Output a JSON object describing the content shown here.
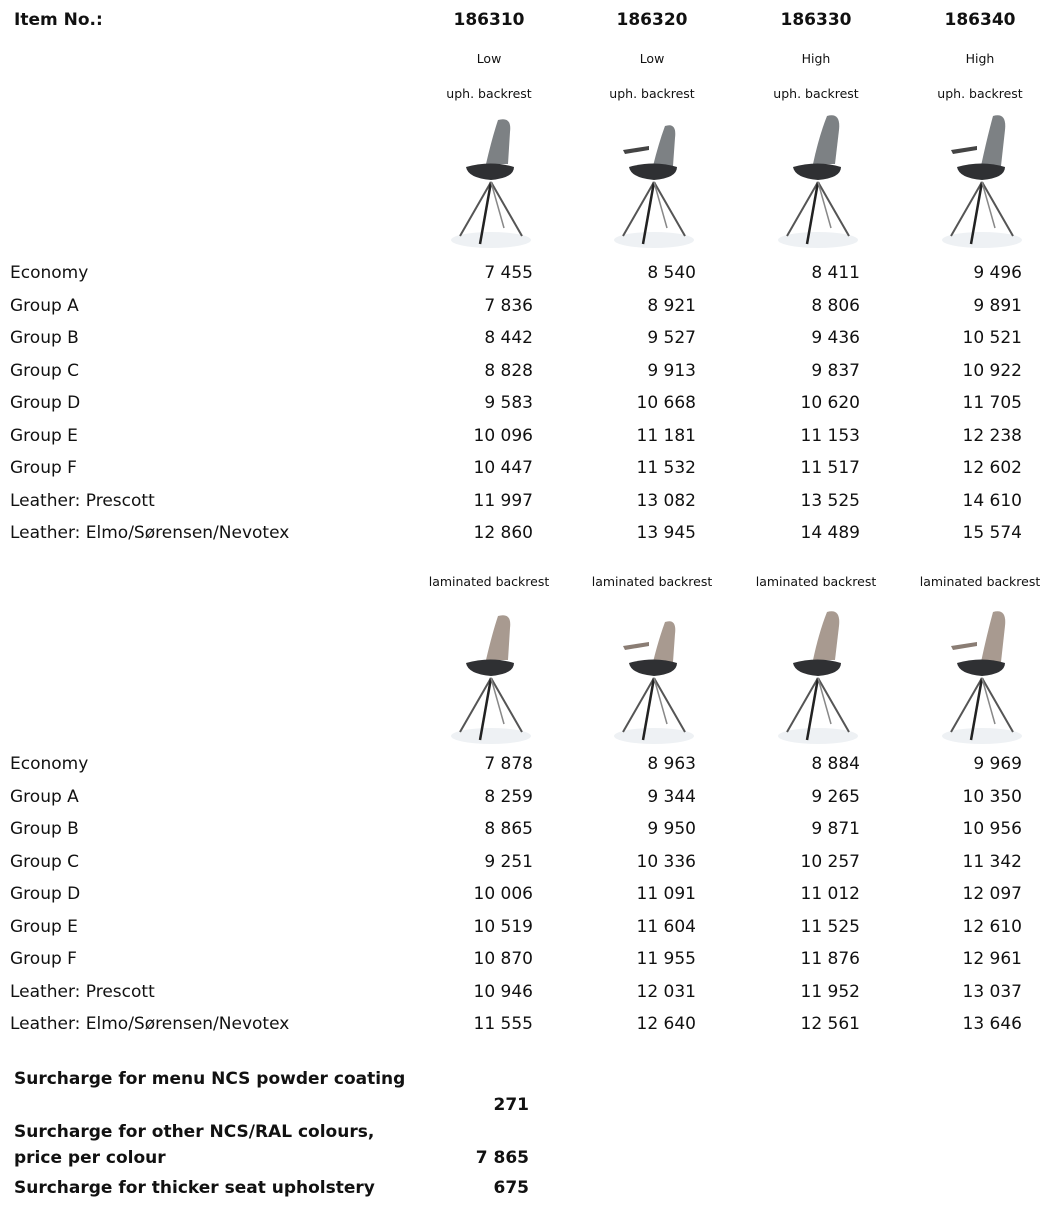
{
  "header": {
    "label": "Item No.:",
    "items": [
      "186310",
      "186320",
      "186330",
      "186340"
    ]
  },
  "heights": [
    "Low",
    "Low",
    "High",
    "High"
  ],
  "sections": [
    {
      "backrest": [
        "uph. backrest",
        "uph. backrest",
        "uph. backrest",
        "uph. backrest"
      ],
      "rows": [
        {
          "label": "Economy",
          "prices": [
            "7 455",
            "8 540",
            "8 411",
            "9 496"
          ]
        },
        {
          "label": "Group A",
          "prices": [
            "7 836",
            "8 921",
            "8 806",
            "9 891"
          ]
        },
        {
          "label": "Group B",
          "prices": [
            "8 442",
            "9 527",
            "9 436",
            "10 521"
          ]
        },
        {
          "label": "Group C",
          "prices": [
            "8 828",
            "9 913",
            "9 837",
            "10 922"
          ]
        },
        {
          "label": "Group D",
          "prices": [
            "9 583",
            "10 668",
            "10 620",
            "11 705"
          ]
        },
        {
          "label": "Group E",
          "prices": [
            "10 096",
            "11 181",
            "11 153",
            "12 238"
          ]
        },
        {
          "label": "Group F",
          "prices": [
            "10 447",
            "11 532",
            "11 517",
            "12 602"
          ]
        },
        {
          "label": "Leather: Prescott",
          "prices": [
            "11 997",
            "13 082",
            "13 525",
            "14 610"
          ]
        },
        {
          "label": "Leather: Elmo/Sørensen/Nevotex",
          "prices": [
            "12 860",
            "13 945",
            "14 489",
            "15 574"
          ]
        }
      ]
    },
    {
      "backrest": [
        "laminated backrest",
        "laminated backrest",
        "laminated backrest",
        "laminated backrest"
      ],
      "rows": [
        {
          "label": "Economy",
          "prices": [
            "7 878",
            "8 963",
            "8 884",
            "9 969"
          ]
        },
        {
          "label": "Group A",
          "prices": [
            "8 259",
            "9 344",
            "9 265",
            "10 350"
          ]
        },
        {
          "label": "Group B",
          "prices": [
            "8 865",
            "9 950",
            "9 871",
            "10 956"
          ]
        },
        {
          "label": "Group C",
          "prices": [
            "9 251",
            "10 336",
            "10 257",
            "11 342"
          ]
        },
        {
          "label": "Group D",
          "prices": [
            "10 006",
            "11 091",
            "11 012",
            "12 097"
          ]
        },
        {
          "label": "Group E",
          "prices": [
            "10 519",
            "11 604",
            "11 525",
            "12 610"
          ]
        },
        {
          "label": "Group F",
          "prices": [
            "10 870",
            "11 955",
            "11 876",
            "12 961"
          ]
        },
        {
          "label": "Leather: Prescott",
          "prices": [
            "10 946",
            "12 031",
            "11 952",
            "13 037"
          ]
        },
        {
          "label": "Leather: Elmo/Sørensen/Nevotex",
          "prices": [
            "11 555",
            "12 640",
            "12 561",
            "13 646"
          ]
        }
      ]
    }
  ],
  "surcharges": [
    {
      "label": "Surcharge for menu NCS powder coating",
      "value": "271"
    },
    {
      "label": "Surcharge for other NCS/RAL colours, price per colour",
      "value": "7 865"
    },
    {
      "label": "Surcharge for thicker seat upholstery",
      "value": "675"
    }
  ]
}
